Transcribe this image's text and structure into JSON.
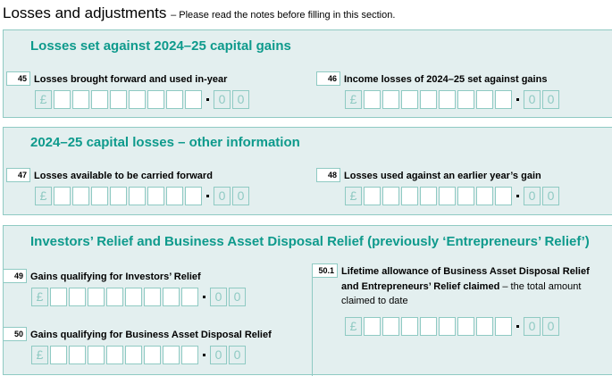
{
  "title": "Losses and adjustments",
  "subtitle": "– Please read the notes before filling in this section.",
  "sections": [
    {
      "heading": "Losses set against 2024–25 capital gains",
      "fields": [
        {
          "box": "45",
          "label": "Losses brought forward and used in-year"
        },
        {
          "box": "46",
          "label": "Income losses of 2024–25 set against gains"
        }
      ]
    },
    {
      "heading": "2024–25 capital losses – other information",
      "fields": [
        {
          "box": "47",
          "label": "Losses available to be carried forward"
        },
        {
          "box": "48",
          "label": "Losses used against an earlier year’s gain"
        }
      ]
    },
    {
      "heading": "Investors’ Relief and Business Asset Disposal Relief (previously ‘Entrepreneurs’ Relief’)",
      "fields": [
        {
          "box": "49",
          "label": "Gains qualifying for Investors’ Relief"
        },
        {
          "box": "50",
          "label": "Gains qualifying for Business Asset Disposal Relief"
        },
        {
          "box": "50.1",
          "label_line1": "Lifetime allowance of Business Asset Disposal Relief",
          "label_line2_bold": "and Entrepreneurs’ Relief claimed",
          "label_line2_normal": " – the total amount",
          "label_line3": "claimed to date"
        }
      ]
    }
  ],
  "currency_symbol": "£",
  "pence": [
    "0",
    "0"
  ],
  "colors": {
    "accent": "#0e9a8c",
    "panel": "#e3efef",
    "border": "#8fcac3"
  }
}
